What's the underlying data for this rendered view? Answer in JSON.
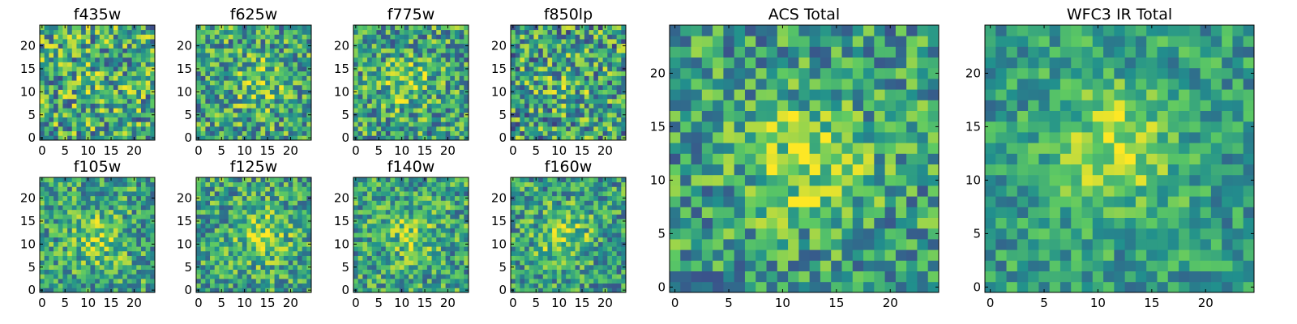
{
  "chart_data": {
    "type": "heatmap",
    "colormap": [
      "#440154",
      "#3b528b",
      "#21908d",
      "#5dc963",
      "#fde725"
    ],
    "grid": false,
    "panels": [
      {
        "title": "f435w",
        "shape": [
          25,
          25
        ],
        "value_range": [
          0,
          1
        ],
        "seed": 11,
        "peak": [
          12,
          12
        ],
        "strength": 0.05,
        "noise": 0.38,
        "base": 0.6,
        "xticks": [
          0,
          5,
          10,
          15,
          20
        ],
        "yticks": [
          0,
          5,
          10,
          15,
          20
        ],
        "xlim": [
          -0.5,
          24.5
        ],
        "ylim": [
          -0.5,
          24.5
        ]
      },
      {
        "title": "f625w",
        "shape": [
          25,
          25
        ],
        "value_range": [
          0,
          1
        ],
        "seed": 23,
        "peak": [
          13,
          12
        ],
        "strength": 0.18,
        "noise": 0.34,
        "base": 0.58,
        "xticks": [
          0,
          5,
          10,
          15,
          20
        ],
        "yticks": [
          0,
          5,
          10,
          15,
          20
        ],
        "xlim": [
          -0.5,
          24.5
        ],
        "ylim": [
          -0.5,
          24.5
        ]
      },
      {
        "title": "f775w",
        "shape": [
          25,
          25
        ],
        "value_range": [
          0,
          1
        ],
        "seed": 37,
        "peak": [
          11,
          12
        ],
        "strength": 0.2,
        "noise": 0.34,
        "base": 0.57,
        "xticks": [
          0,
          5,
          10,
          15,
          20
        ],
        "yticks": [
          0,
          5,
          10,
          15,
          20
        ],
        "xlim": [
          -0.5,
          24.5
        ],
        "ylim": [
          -0.5,
          24.5
        ]
      },
      {
        "title": "f850lp",
        "shape": [
          25,
          25
        ],
        "value_range": [
          0,
          1
        ],
        "seed": 41,
        "peak": [
          12,
          12
        ],
        "strength": 0.1,
        "noise": 0.38,
        "base": 0.56,
        "xticks": [
          0,
          5,
          10,
          15,
          20
        ],
        "yticks": [
          0,
          5,
          10,
          15,
          20
        ],
        "xlim": [
          -0.5,
          24.5
        ],
        "ylim": [
          -0.5,
          24.5
        ]
      },
      {
        "title": "f105w",
        "shape": [
          25,
          25
        ],
        "value_range": [
          0,
          1
        ],
        "seed": 53,
        "peak": [
          12,
          11
        ],
        "strength": 0.22,
        "noise": 0.3,
        "base": 0.58,
        "xticks": [
          0,
          5,
          10,
          15,
          20
        ],
        "yticks": [
          0,
          5,
          10,
          15,
          20
        ],
        "xlim": [
          -0.5,
          24.5
        ],
        "ylim": [
          -0.5,
          24.5
        ]
      },
      {
        "title": "f125w",
        "shape": [
          25,
          25
        ],
        "value_range": [
          0,
          1
        ],
        "seed": 67,
        "peak": [
          14,
          12
        ],
        "strength": 0.26,
        "noise": 0.3,
        "base": 0.58,
        "xticks": [
          0,
          5,
          10,
          15,
          20
        ],
        "yticks": [
          0,
          5,
          10,
          15,
          20
        ],
        "xlim": [
          -0.5,
          24.5
        ],
        "ylim": [
          -0.5,
          24.5
        ]
      },
      {
        "title": "f140w",
        "shape": [
          25,
          25
        ],
        "value_range": [
          0,
          1
        ],
        "seed": 71,
        "peak": [
          12,
          12
        ],
        "strength": 0.22,
        "noise": 0.3,
        "base": 0.58,
        "xticks": [
          0,
          5,
          10,
          15,
          20
        ],
        "yticks": [
          0,
          5,
          10,
          15,
          20
        ],
        "xlim": [
          -0.5,
          24.5
        ],
        "ylim": [
          -0.5,
          24.5
        ]
      },
      {
        "title": "f160w",
        "shape": [
          25,
          25
        ],
        "value_range": [
          0,
          1
        ],
        "seed": 83,
        "peak": [
          11,
          12
        ],
        "strength": 0.28,
        "noise": 0.3,
        "base": 0.56,
        "xticks": [
          0,
          5,
          10,
          15,
          20
        ],
        "yticks": [
          0,
          5,
          10,
          15,
          20
        ],
        "xlim": [
          -0.5,
          24.5
        ],
        "ylim": [
          -0.5,
          24.5
        ]
      },
      {
        "title": "ACS Total",
        "shape": [
          25,
          25
        ],
        "value_range": [
          0,
          1
        ],
        "seed": 97,
        "peak": [
          12,
          12
        ],
        "strength": 0.3,
        "noise": 0.3,
        "base": 0.55,
        "xticks": [
          0,
          5,
          10,
          15,
          20
        ],
        "yticks": [
          0,
          5,
          10,
          15,
          20
        ],
        "xlim": [
          -0.5,
          24.5
        ],
        "ylim": [
          -0.5,
          24.5
        ]
      },
      {
        "title": "WFC3 IR Total",
        "shape": [
          25,
          25
        ],
        "value_range": [
          0,
          1
        ],
        "seed": 101,
        "peak": [
          12,
          13
        ],
        "strength": 0.34,
        "noise": 0.22,
        "base": 0.55,
        "xticks": [
          0,
          5,
          10,
          15,
          20
        ],
        "yticks": [
          0,
          5,
          10,
          15,
          20
        ],
        "xlim": [
          -0.5,
          24.5
        ],
        "ylim": [
          -0.5,
          24.5
        ]
      }
    ]
  }
}
